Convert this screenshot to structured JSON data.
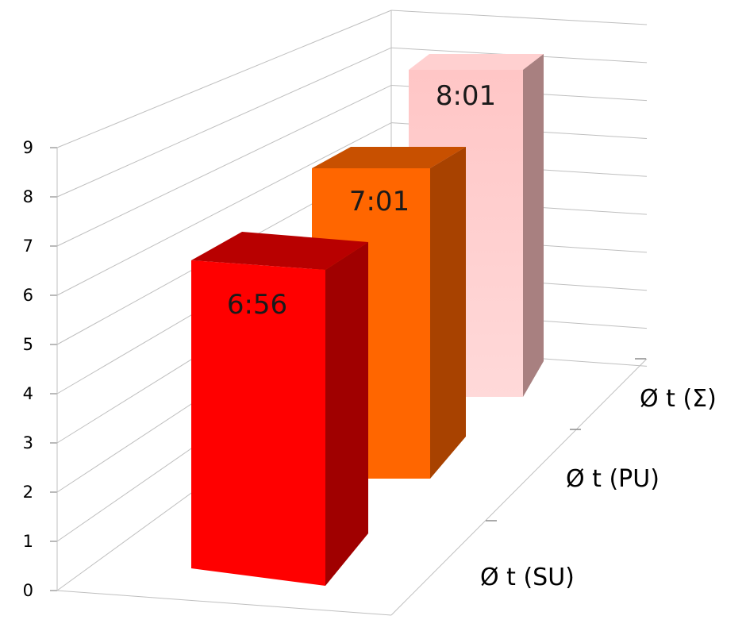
{
  "chart_data": {
    "type": "bar",
    "view": "3d-depth-columns",
    "categories": [
      "Ø t (SU)",
      "Ø t (PU)",
      "Ø t (Σ)"
    ],
    "values": [
      6.93,
      7.02,
      8.02
    ],
    "data_labels": [
      "6:56",
      "7:01",
      "8:01"
    ],
    "colors": {
      "bar_1": "#ff0000",
      "bar_2": "#ff6600",
      "bar_3": "#ffcccc",
      "gridline": "#bfbfbf"
    },
    "ylim": [
      0,
      9
    ],
    "yticks": [
      "0",
      "1",
      "2",
      "3",
      "4",
      "5",
      "6",
      "7",
      "8",
      "9"
    ],
    "grid": true,
    "legend": "none"
  }
}
